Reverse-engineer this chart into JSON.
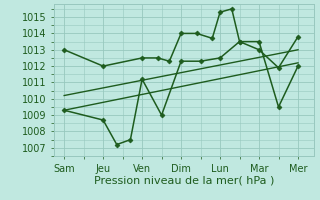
{
  "x_labels": [
    "Sam",
    "Jeu",
    "Ven",
    "Dim",
    "Lun",
    "Mar",
    "Mer"
  ],
  "x_ticks": [
    0,
    1,
    2,
    3,
    4,
    5,
    6
  ],
  "series": [
    {
      "name": "upper_line",
      "x": [
        0,
        1,
        2,
        2.4,
        2.7,
        3,
        3.4,
        3.8,
        4.0,
        4.3,
        4.5,
        5,
        5.5,
        6
      ],
      "y": [
        1013.0,
        1012.0,
        1012.5,
        1012.5,
        1012.3,
        1014.0,
        1014.0,
        1013.7,
        1015.3,
        1015.5,
        1013.5,
        1013.0,
        1011.9,
        1013.8
      ],
      "marker": "D",
      "markersize": 2.5,
      "linewidth": 1.1
    },
    {
      "name": "lower_line",
      "x": [
        0,
        1,
        1.35,
        1.7,
        2,
        2.5,
        3,
        3.5,
        4,
        4.5,
        5,
        5.5,
        6
      ],
      "y": [
        1009.3,
        1008.7,
        1007.2,
        1007.5,
        1011.2,
        1009.0,
        1012.3,
        1012.3,
        1012.5,
        1013.5,
        1013.5,
        1009.5,
        1012.0
      ],
      "marker": "D",
      "markersize": 2.5,
      "linewidth": 1.1
    },
    {
      "name": "trend_upper",
      "x": [
        0,
        6
      ],
      "y": [
        1010.2,
        1013.0
      ],
      "marker": null,
      "markersize": 0,
      "linewidth": 1.0
    },
    {
      "name": "trend_lower",
      "x": [
        0,
        6
      ],
      "y": [
        1009.3,
        1012.2
      ],
      "marker": null,
      "markersize": 0,
      "linewidth": 1.0
    }
  ],
  "yticks": [
    1007,
    1008,
    1009,
    1010,
    1011,
    1012,
    1013,
    1014,
    1015
  ],
  "ylim": [
    1006.5,
    1015.8
  ],
  "xlim": [
    -0.25,
    6.4
  ],
  "line_color": "#1e5c1e",
  "background_color": "#c0e8e0",
  "grid_color": "#98c8be",
  "xlabel": "Pression niveau de la mer( hPa )",
  "xlabel_color": "#1e5c1e",
  "xlabel_fontsize": 8.0,
  "tick_fontsize": 7.0,
  "tick_color": "#1e5c1e"
}
